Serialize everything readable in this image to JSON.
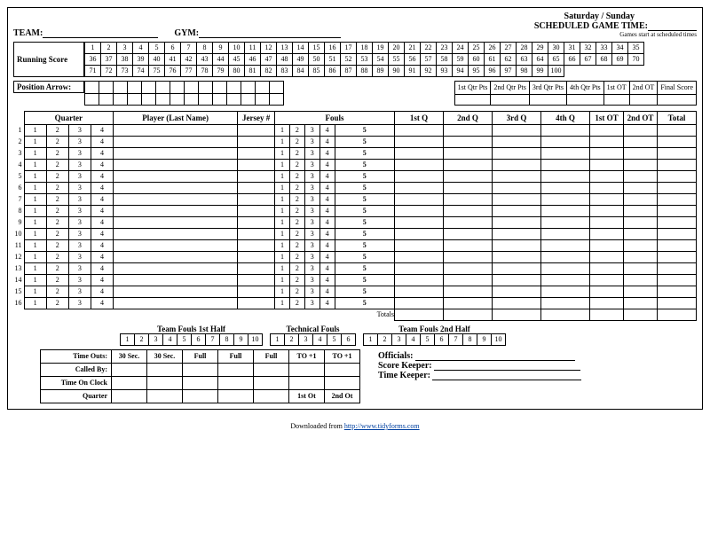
{
  "header": {
    "day_label": "Saturday   /   Sunday",
    "team_label": "TEAM:",
    "gym_label": "GYM:",
    "sched_label": "SCHEDULED GAME TIME:",
    "sched_note": "Games start at scheduled times"
  },
  "running_score": {
    "label": "Running Score",
    "max": 100
  },
  "position_arrow": {
    "label": "Position Arrow:",
    "cells": 14
  },
  "qtr_pts": [
    "1st Qtr Pts",
    "2nd Qtr Pts",
    "3rd Qtr Pts",
    "4th Qtr Pts",
    "1st OT",
    "2nd OT",
    "Final Score"
  ],
  "roster": {
    "headers": {
      "quarter": "Quarter",
      "player": "Player (Last Name)",
      "jersey": "Jersey #",
      "fouls": "Fouls",
      "q1": "1st Q",
      "q2": "2nd Q",
      "q3": "3rd Q",
      "q4": "4th Q",
      "ot1": "1st OT",
      "ot2": "2nd OT",
      "total": "Total"
    },
    "rows": 16,
    "totals": "Totals"
  },
  "team_fouls": {
    "half1": "Team Fouls 1st Half",
    "half2": "Team Fouls 2nd Half",
    "tech": "Technical Fouls",
    "count": 10,
    "tech_count": 6
  },
  "bottom": {
    "rows": [
      "Time Outs:",
      "Called By:",
      "Time On Clock",
      "Quarter"
    ],
    "cols": [
      "30 Sec.",
      "30 Sec.",
      "Full",
      "Full",
      "Full",
      "TO +1",
      "TO +1"
    ],
    "ot1": "1st Ot",
    "ot2": "2nd Ot",
    "officials": "Officials:",
    "score_keeper": "Score Keeper:",
    "time_keeper": "Time Keeper:"
  },
  "footer": {
    "pre": "Downloaded from ",
    "url": "http://www.tidyforms.com"
  }
}
